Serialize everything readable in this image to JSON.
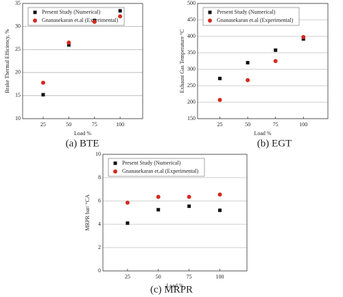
{
  "chart_data": [
    {
      "type": "scatter",
      "caption": "(a) BTE",
      "xlabel": "Load %",
      "ylabel": "Brake Thermal Efficiency, %",
      "x": [
        25,
        50,
        75,
        100
      ],
      "xlim": [
        5,
        122
      ],
      "xticks": [
        25,
        50,
        75,
        100
      ],
      "ylim": [
        10,
        35
      ],
      "yticks": [
        10,
        15,
        20,
        25,
        30,
        35
      ],
      "grid": true,
      "legend": "upper-left",
      "series": [
        {
          "name": "Present Study (Numerical)",
          "color": "#111111",
          "marker": "square",
          "values": [
            15.2,
            26.0,
            31.3,
            33.4
          ]
        },
        {
          "name": "Gnanasekaran et.al (Experimental)",
          "color": "#d42a20",
          "marker": "circle",
          "values": [
            17.8,
            26.5,
            31.0,
            32.2
          ]
        }
      ]
    },
    {
      "type": "scatter",
      "caption": "(b) EGT",
      "xlabel": "Load %",
      "ylabel": "Exhaust Gas Temperature °C",
      "x": [
        25,
        50,
        75,
        100
      ],
      "xlim": [
        5,
        122
      ],
      "xticks": [
        25,
        50,
        75,
        100
      ],
      "ylim": [
        150,
        500
      ],
      "yticks": [
        150,
        200,
        250,
        300,
        350,
        400,
        450,
        500
      ],
      "grid": true,
      "legend": "upper-left",
      "series": [
        {
          "name": "Present Study (Numerical)",
          "color": "#111111",
          "marker": "square",
          "values": [
            272,
            320,
            358,
            392
          ]
        },
        {
          "name": "Gnanasekaran et.al (Experimental)",
          "color": "#d42a20",
          "marker": "circle",
          "values": [
            207,
            267,
            325,
            398
          ]
        }
      ]
    },
    {
      "type": "scatter",
      "caption": "(c) MRPR",
      "xlabel": "Load %",
      "ylabel": "MRPR bar/ °CA",
      "x": [
        25,
        50,
        75,
        100
      ],
      "xlim": [
        5,
        122
      ],
      "xticks": [
        25,
        50,
        75,
        100
      ],
      "ylim": [
        0,
        10
      ],
      "yticks": [
        0,
        2,
        4,
        6,
        8,
        10
      ],
      "grid": true,
      "legend": "upper-left",
      "series": [
        {
          "name": "Present Study (Numerical)",
          "color": "#111111",
          "marker": "square",
          "values": [
            4.1,
            5.25,
            5.55,
            5.2
          ]
        },
        {
          "name": "Gnanasekaran et.al (Experimental)",
          "color": "#d42a20",
          "marker": "circle",
          "values": [
            5.85,
            6.35,
            6.35,
            6.55
          ]
        }
      ]
    }
  ]
}
